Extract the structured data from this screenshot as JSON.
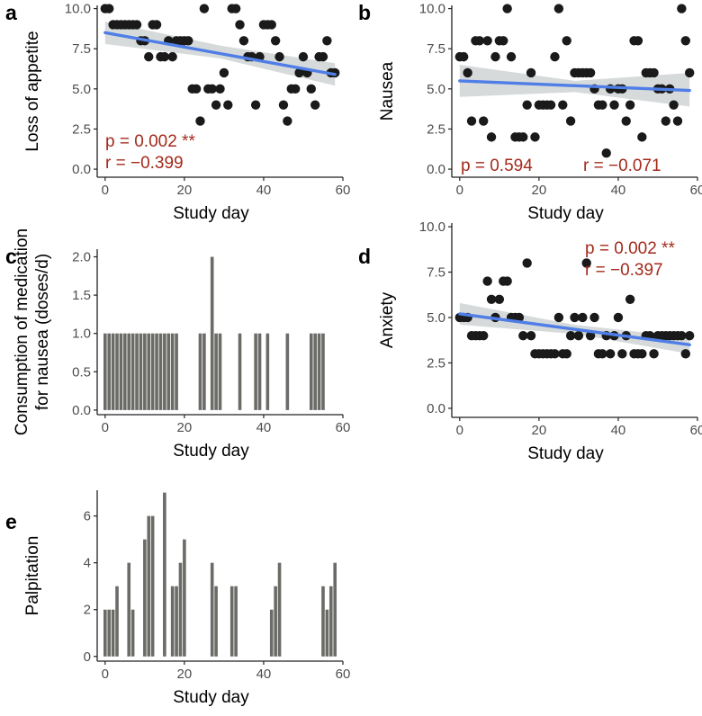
{
  "colors": {
    "dot": "#1a1a1a",
    "bar": "#6b6b67",
    "fit": "#4f7ee6",
    "band": "#c9cdcf",
    "stat": "#a32a1b",
    "axis": "#222222"
  },
  "chart_data": [
    {
      "panel": "a",
      "type": "scatter",
      "xlabel": "Study day",
      "ylabel": "Loss of appetite",
      "xlim": [
        -2,
        60
      ],
      "ylim": [
        -0.5,
        10.2
      ],
      "xticks": [
        "0",
        "20",
        "40",
        "60"
      ],
      "yticks": [
        "0.0",
        "2.5",
        "5.0",
        "7.5",
        "10.0"
      ],
      "xtick_values": [
        0,
        20,
        40,
        60
      ],
      "ytick_values": [
        0,
        2.5,
        5,
        7.5,
        10
      ],
      "fit": {
        "x": [
          0,
          58
        ],
        "y": [
          8.5,
          5.9
        ]
      },
      "band": {
        "x": [
          0,
          29,
          58
        ],
        "lower": [
          7.8,
          6.9,
          5.2
        ],
        "upper": [
          9.2,
          7.7,
          6.6
        ]
      },
      "stat_p": "p = 0.002 **",
      "stat_r": "r = −0.399",
      "points": [
        [
          0,
          10
        ],
        [
          1,
          10
        ],
        [
          2,
          9
        ],
        [
          3,
          9
        ],
        [
          4,
          9
        ],
        [
          5,
          9
        ],
        [
          6,
          9
        ],
        [
          7,
          9
        ],
        [
          8,
          9
        ],
        [
          9,
          8
        ],
        [
          10,
          8
        ],
        [
          11,
          7
        ],
        [
          12,
          9
        ],
        [
          13,
          9
        ],
        [
          14,
          7
        ],
        [
          15,
          7
        ],
        [
          16,
          8
        ],
        [
          17,
          7
        ],
        [
          18,
          8
        ],
        [
          19,
          8
        ],
        [
          20,
          8
        ],
        [
          21,
          8
        ],
        [
          22,
          5
        ],
        [
          23,
          5
        ],
        [
          24,
          3
        ],
        [
          25,
          10
        ],
        [
          26,
          5
        ],
        [
          27,
          5
        ],
        [
          28,
          4
        ],
        [
          29,
          5
        ],
        [
          30,
          6
        ],
        [
          31,
          4
        ],
        [
          32,
          10
        ],
        [
          33,
          10
        ],
        [
          34,
          9
        ],
        [
          35,
          8
        ],
        [
          36,
          7
        ],
        [
          37,
          7
        ],
        [
          38,
          4
        ],
        [
          39,
          7
        ],
        [
          40,
          9
        ],
        [
          41,
          9
        ],
        [
          42,
          9
        ],
        [
          43,
          8
        ],
        [
          44,
          7
        ],
        [
          45,
          4
        ],
        [
          46,
          3
        ],
        [
          47,
          5
        ],
        [
          48,
          5
        ],
        [
          49,
          6
        ],
        [
          50,
          7
        ],
        [
          51,
          6
        ],
        [
          52,
          5
        ],
        [
          53,
          4
        ],
        [
          54,
          7
        ],
        [
          55,
          7
        ],
        [
          56,
          8
        ],
        [
          57,
          6
        ],
        [
          58,
          6
        ]
      ]
    },
    {
      "panel": "b",
      "type": "scatter",
      "xlabel": "Study day",
      "ylabel": "Nausea",
      "xlim": [
        -2,
        60
      ],
      "ylim": [
        -0.5,
        10.2
      ],
      "xticks": [
        "0",
        "20",
        "40",
        "60"
      ],
      "yticks": [
        "0.0",
        "2.5",
        "5.0",
        "7.5",
        "10.0"
      ],
      "xtick_values": [
        0,
        20,
        40,
        60
      ],
      "ytick_values": [
        0,
        2.5,
        5,
        7.5,
        10
      ],
      "fit": {
        "x": [
          0,
          58
        ],
        "y": [
          5.5,
          4.9
        ]
      },
      "band": {
        "x": [
          0,
          29,
          58
        ],
        "lower": [
          4.5,
          4.8,
          3.9
        ],
        "upper": [
          6.5,
          5.5,
          6.0
        ]
      },
      "stat_p": "p = 0.594",
      "stat_r": "r = −0.071",
      "points": [
        [
          0,
          7
        ],
        [
          1,
          7
        ],
        [
          2,
          6
        ],
        [
          3,
          3
        ],
        [
          4,
          8
        ],
        [
          5,
          8
        ],
        [
          6,
          3
        ],
        [
          7,
          8
        ],
        [
          8,
          2
        ],
        [
          9,
          7
        ],
        [
          10,
          8
        ],
        [
          11,
          8
        ],
        [
          12,
          10
        ],
        [
          13,
          7
        ],
        [
          14,
          2
        ],
        [
          15,
          2
        ],
        [
          16,
          2
        ],
        [
          17,
          4
        ],
        [
          18,
          6
        ],
        [
          19,
          2
        ],
        [
          20,
          4
        ],
        [
          21,
          4
        ],
        [
          22,
          4
        ],
        [
          23,
          4
        ],
        [
          24,
          7
        ],
        [
          25,
          10
        ],
        [
          26,
          4
        ],
        [
          27,
          8
        ],
        [
          28,
          3
        ],
        [
          29,
          6
        ],
        [
          30,
          6
        ],
        [
          31,
          6
        ],
        [
          32,
          6
        ],
        [
          33,
          6
        ],
        [
          34,
          5
        ],
        [
          35,
          4
        ],
        [
          36,
          4
        ],
        [
          37,
          1
        ],
        [
          38,
          5
        ],
        [
          39,
          4
        ],
        [
          40,
          5
        ],
        [
          41,
          5
        ],
        [
          42,
          3
        ],
        [
          43,
          4
        ],
        [
          44,
          8
        ],
        [
          45,
          8
        ],
        [
          46,
          2
        ],
        [
          47,
          6
        ],
        [
          48,
          6
        ],
        [
          49,
          6
        ],
        [
          50,
          5
        ],
        [
          51,
          5
        ],
        [
          52,
          3
        ],
        [
          53,
          5
        ],
        [
          54,
          4
        ],
        [
          55,
          3
        ],
        [
          56,
          10
        ],
        [
          57,
          8
        ],
        [
          58,
          6
        ]
      ]
    },
    {
      "panel": "c",
      "type": "bar",
      "xlabel": "Study day",
      "ylabel": "Consumption of medication for nausea (doses/d)",
      "ylabel_lines": [
        "Consumption of medication",
        "for nausea (doses/d)"
      ],
      "xlim": [
        -2,
        60
      ],
      "ylim": [
        -0.06,
        2.1
      ],
      "xticks": [
        "0",
        "20",
        "40",
        "60"
      ],
      "yticks": [
        "0.0",
        "0.5",
        "1.0",
        "1.5",
        "2.0"
      ],
      "xtick_values": [
        0,
        20,
        40,
        60
      ],
      "ytick_values": [
        0,
        0.5,
        1,
        1.5,
        2
      ],
      "days": [
        0,
        1,
        2,
        3,
        4,
        5,
        6,
        7,
        8,
        9,
        10,
        11,
        12,
        13,
        14,
        15,
        16,
        17,
        18,
        24,
        25,
        27,
        28,
        29,
        34,
        38,
        39,
        41,
        46,
        52,
        53,
        54,
        55
      ],
      "values": [
        1,
        1,
        1,
        1,
        1,
        1,
        1,
        1,
        1,
        1,
        1,
        1,
        1,
        1,
        1,
        1,
        1,
        1,
        1,
        1,
        1,
        2,
        1,
        1,
        1,
        1,
        1,
        1,
        1,
        1,
        1,
        1,
        1
      ]
    },
    {
      "panel": "d",
      "type": "scatter",
      "xlabel": "Study day",
      "ylabel": "Anxiety",
      "xlim": [
        -2,
        60
      ],
      "ylim": [
        -0.5,
        10.2
      ],
      "xticks": [
        "0",
        "20",
        "40",
        "60"
      ],
      "yticks": [
        "0.0",
        "2.5",
        "5.0",
        "7.5",
        "10.0"
      ],
      "xtick_values": [
        0,
        20,
        40,
        60
      ],
      "ytick_values": [
        0,
        2.5,
        5,
        7.5,
        10
      ],
      "fit": {
        "x": [
          0,
          58
        ],
        "y": [
          5.2,
          3.5
        ]
      },
      "band": {
        "x": [
          0,
          29,
          58
        ],
        "lower": [
          4.6,
          4.1,
          3.0
        ],
        "upper": [
          5.8,
          4.6,
          3.9
        ]
      },
      "stat_p": "p = 0.002 **",
      "stat_r": "r = −0.397",
      "points": [
        [
          0,
          5
        ],
        [
          1,
          5
        ],
        [
          2,
          5
        ],
        [
          3,
          4
        ],
        [
          4,
          4
        ],
        [
          5,
          4
        ],
        [
          6,
          4
        ],
        [
          7,
          7
        ],
        [
          8,
          6
        ],
        [
          9,
          5
        ],
        [
          10,
          6
        ],
        [
          11,
          7
        ],
        [
          12,
          7
        ],
        [
          13,
          5
        ],
        [
          14,
          5
        ],
        [
          15,
          5
        ],
        [
          16,
          4
        ],
        [
          17,
          8
        ],
        [
          18,
          4
        ],
        [
          19,
          3
        ],
        [
          20,
          3
        ],
        [
          21,
          3
        ],
        [
          22,
          3
        ],
        [
          23,
          3
        ],
        [
          24,
          3
        ],
        [
          25,
          5
        ],
        [
          26,
          3
        ],
        [
          27,
          3
        ],
        [
          28,
          4
        ],
        [
          29,
          5
        ],
        [
          30,
          4
        ],
        [
          31,
          5
        ],
        [
          32,
          8
        ],
        [
          33,
          4
        ],
        [
          34,
          5
        ],
        [
          35,
          3
        ],
        [
          36,
          3
        ],
        [
          37,
          4
        ],
        [
          38,
          3
        ],
        [
          39,
          4
        ],
        [
          40,
          5
        ],
        [
          41,
          3
        ],
        [
          42,
          4
        ],
        [
          43,
          6
        ],
        [
          44,
          3
        ],
        [
          45,
          3
        ],
        [
          46,
          3
        ],
        [
          47,
          4
        ],
        [
          48,
          4
        ],
        [
          49,
          3
        ],
        [
          50,
          4
        ],
        [
          51,
          4
        ],
        [
          52,
          4
        ],
        [
          53,
          4
        ],
        [
          54,
          4
        ],
        [
          55,
          4
        ],
        [
          56,
          4
        ],
        [
          57,
          3
        ],
        [
          58,
          4
        ]
      ]
    },
    {
      "panel": "e",
      "type": "bar",
      "xlabel": "Study day",
      "ylabel": "Palpitation",
      "xlim": [
        -2,
        60
      ],
      "ylim": [
        -0.2,
        7.1
      ],
      "xticks": [
        "0",
        "20",
        "40",
        "60"
      ],
      "yticks": [
        "0",
        "2",
        "4",
        "6"
      ],
      "xtick_values": [
        0,
        20,
        40,
        60
      ],
      "ytick_values": [
        0,
        2,
        4,
        6
      ],
      "days": [
        0,
        1,
        2,
        3,
        6,
        7,
        10,
        11,
        12,
        15,
        17,
        18,
        19,
        20,
        27,
        28,
        32,
        33,
        42,
        43,
        44,
        55,
        56,
        57,
        58
      ],
      "values": [
        2,
        2,
        2,
        3,
        4,
        2,
        5,
        6,
        6,
        7,
        3,
        3,
        4,
        5,
        4,
        3,
        3,
        3,
        2,
        3,
        4,
        3,
        2,
        3,
        4
      ]
    }
  ]
}
